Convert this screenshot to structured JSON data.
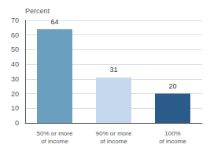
{
  "chart_data": {
    "type": "bar",
    "categories": [
      "50% or more\nof income",
      "90% or more\nof income",
      "100%\nof income"
    ],
    "values": [
      64,
      31,
      20
    ],
    "colors": [
      "#6a9fc0",
      "#c5d8ed",
      "#2a5b8a"
    ],
    "ylabel": "Percent",
    "ylim": [
      0,
      70
    ],
    "yticks": [
      0,
      10,
      20,
      30,
      40,
      50,
      60,
      70
    ],
    "grid": true,
    "data_labels": true
  }
}
